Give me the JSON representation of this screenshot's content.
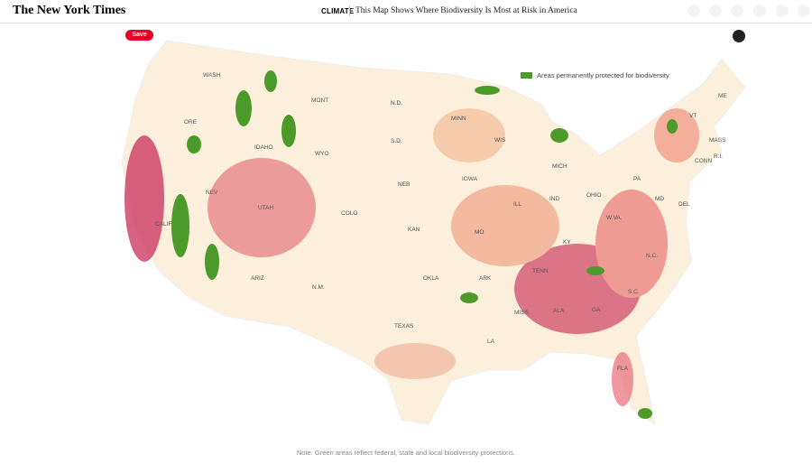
{
  "header": {
    "logo": "The New York Times",
    "section": "CLIMATE",
    "headline": "This Map Shows Where Biodiversity Is Most at Risk in America"
  },
  "map": {
    "save_button": "Save",
    "legend": "Areas permanently protected for biodiversity",
    "state_labels": [
      "WASH",
      "MONT",
      "N.D.",
      "MINN",
      "ME",
      "VT",
      "ORE",
      "IDAHO",
      "S.D.",
      "WIS",
      "MICH",
      "MASS",
      "R.I.",
      "CONN",
      "WYO",
      "NEB",
      "IOWA",
      "PA",
      "NEV",
      "UTAH",
      "COLO",
      "ILL",
      "IND",
      "OHIO",
      "MD",
      "DEL",
      "W.VA.",
      "KAN",
      "MO",
      "KY",
      "CALIF",
      "ARIZ",
      "N.M.",
      "OKLA",
      "ARK",
      "TENN",
      "N.C.",
      "S.C.",
      "MISS",
      "ALA",
      "GA",
      "TEXAS",
      "LA",
      "FLA"
    ]
  },
  "note": "Note: Green areas reflect federal, state and local biodiversity protections."
}
